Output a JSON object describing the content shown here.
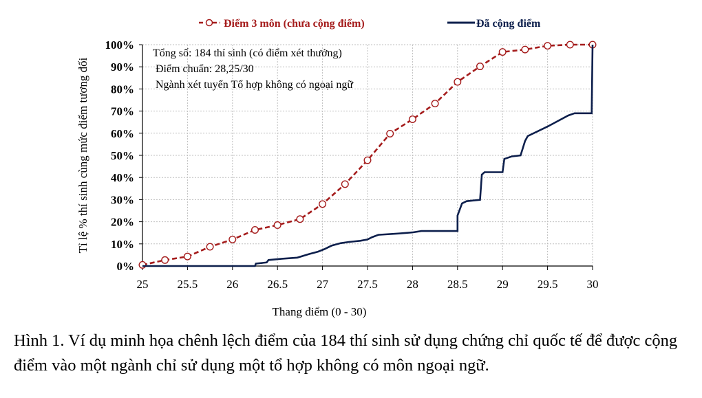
{
  "chart_data": {
    "type": "line",
    "xlabel": "Thang điểm (0 - 30)",
    "ylabel": "Tỉ lệ % thí sinh cùng mức điểm tương đối",
    "xlim": [
      25,
      30
    ],
    "ylim": [
      0,
      100
    ],
    "x_ticks": [
      "25",
      "25.5",
      "26",
      "26.5",
      "27",
      "27.5",
      "28",
      "28.5",
      "29",
      "29.5",
      "30"
    ],
    "y_ticks": [
      "0%",
      "10%",
      "20%",
      "30%",
      "40%",
      "50%",
      "60%",
      "70%",
      "80%",
      "90%",
      "100%"
    ],
    "grid": true,
    "legend_position": "top",
    "annotations": [
      "Tổng số: 184 thí sinh  (có điểm xét thưởng)",
      "Điểm chuẩn: 28,25/30",
      "Ngành xét tuyển Tổ hợp không có ngoại ngữ"
    ],
    "series": [
      {
        "name": "Điểm 3 môn (chưa cộng điểm)",
        "color": "#a51c1c",
        "style": "dashed-circles",
        "points": [
          [
            25.0,
            0.5
          ],
          [
            25.25,
            2.7
          ],
          [
            25.5,
            4.3
          ],
          [
            25.75,
            8.7
          ],
          [
            26.0,
            12.0
          ],
          [
            26.25,
            16.3
          ],
          [
            26.5,
            18.5
          ],
          [
            26.75,
            21.2
          ],
          [
            27.0,
            28.0
          ],
          [
            27.25,
            37.0
          ],
          [
            27.5,
            47.8
          ],
          [
            27.75,
            59.8
          ],
          [
            28.0,
            66.3
          ],
          [
            28.25,
            73.4
          ],
          [
            28.5,
            83.2
          ],
          [
            28.75,
            90.2
          ],
          [
            29.0,
            96.7
          ],
          [
            29.25,
            97.8
          ],
          [
            29.5,
            99.5
          ],
          [
            29.75,
            100
          ],
          [
            30.0,
            100
          ]
        ]
      },
      {
        "name": "Đã cộng điểm",
        "color": "#0d1f4c",
        "style": "step",
        "points": [
          [
            25.0,
            0
          ],
          [
            26.25,
            0
          ],
          [
            26.26,
            1.1
          ],
          [
            26.38,
            1.6
          ],
          [
            26.4,
            2.7
          ],
          [
            26.55,
            3.3
          ],
          [
            26.72,
            3.8
          ],
          [
            26.85,
            5.4
          ],
          [
            26.95,
            6.5
          ],
          [
            27.02,
            7.6
          ],
          [
            27.1,
            9.2
          ],
          [
            27.2,
            10.3
          ],
          [
            27.3,
            10.9
          ],
          [
            27.42,
            11.4
          ],
          [
            27.5,
            12.0
          ],
          [
            27.55,
            13.0
          ],
          [
            27.62,
            14.1
          ],
          [
            27.85,
            14.7
          ],
          [
            28.0,
            15.2
          ],
          [
            28.1,
            15.8
          ],
          [
            28.5,
            15.8
          ],
          [
            28.5,
            22.8
          ],
          [
            28.55,
            28.3
          ],
          [
            28.6,
            29.3
          ],
          [
            28.75,
            29.9
          ],
          [
            28.77,
            41.3
          ],
          [
            28.8,
            42.4
          ],
          [
            29.0,
            42.4
          ],
          [
            29.02,
            48.4
          ],
          [
            29.1,
            49.5
          ],
          [
            29.2,
            50.0
          ],
          [
            29.25,
            56.5
          ],
          [
            29.28,
            58.7
          ],
          [
            29.5,
            63.0
          ],
          [
            29.73,
            68.0
          ],
          [
            29.8,
            69.0
          ],
          [
            29.99,
            69.0
          ],
          [
            30.0,
            100
          ]
        ]
      }
    ]
  },
  "caption": "Hình 1. Ví dụ minh họa chênh lệch điểm của 184 thí sinh sử dụng chứng chỉ quốc tế để được cộng điểm vào một ngành chỉ sử dụng một tổ hợp không có môn ngoại ngữ."
}
